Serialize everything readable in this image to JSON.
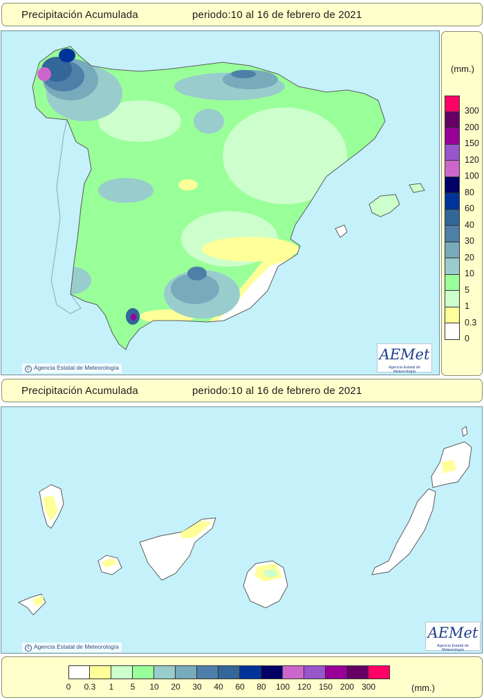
{
  "top_panel": {
    "title": "Precipitación Acumulada",
    "period": "periodo:10 al 16 de febrero de 2021"
  },
  "bottom_panel": {
    "title": "Precipitación Acumulada",
    "period": "periodo:10 al 16 de febrero de 2021"
  },
  "legend": {
    "unit": "(mm.)",
    "classes": [
      {
        "label": "0",
        "color": "#ffffff"
      },
      {
        "label": "0.3",
        "color": "#ffff99"
      },
      {
        "label": "1",
        "color": "#ccffcc"
      },
      {
        "label": "5",
        "color": "#99ff99"
      },
      {
        "label": "10",
        "color": "#99cccc"
      },
      {
        "label": "20",
        "color": "#77aabb"
      },
      {
        "label": "30",
        "color": "#4d7fa8"
      },
      {
        "label": "40",
        "color": "#336699"
      },
      {
        "label": "60",
        "color": "#003399"
      },
      {
        "label": "80",
        "color": "#000066"
      },
      {
        "label": "100",
        "color": "#cc66cc"
      },
      {
        "label": "120",
        "color": "#9955cc"
      },
      {
        "label": "150",
        "color": "#990099"
      },
      {
        "label": "200",
        "color": "#660066"
      },
      {
        "label": "300",
        "color": "#ff0066"
      }
    ]
  },
  "credit": "Agencia Estatal de Meteorología",
  "logo": {
    "name": "AEMet",
    "subtitle": "Agencia Estatal de Meteorología"
  },
  "colors": {
    "sea": "#c5f1fb",
    "panel": "#ffffcc",
    "border": "#333333"
  }
}
